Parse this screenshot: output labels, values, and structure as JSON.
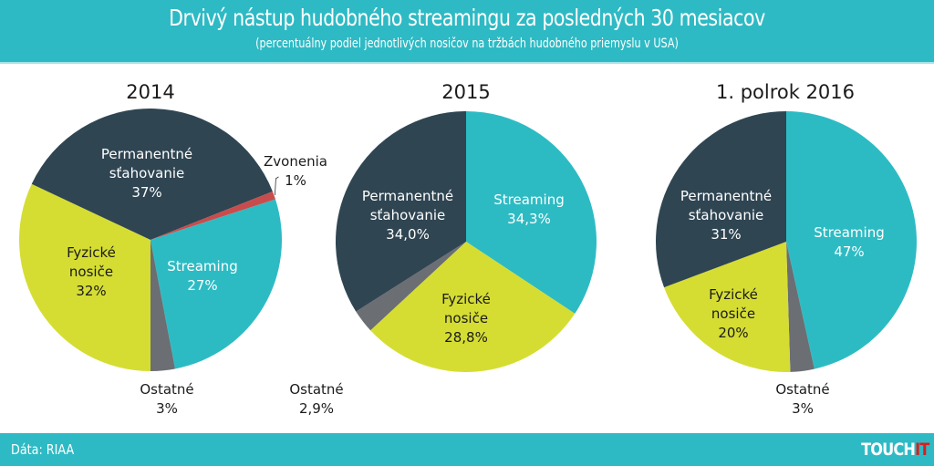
{
  "header": {
    "title": "Drvivý nástup hudobného streamingu za posledných 30 mesiacov",
    "subtitle": "(percentuálny podiel jednotlivých nosičov na tržbách hudobného priemyslu v USA)"
  },
  "footer": {
    "source": "Dáta: RIAA",
    "logo_main": "TOUCH",
    "logo_accent": "IT"
  },
  "colors": {
    "header": "#2ebac4",
    "streaming": "#2dbbc3",
    "permanentne": "#2f4552",
    "fyzicke": "#d5dd33",
    "ostatne": "#6b6e72",
    "zvonenia": "#c94c4c",
    "logo_accent": "#d91e1e"
  },
  "chart_data": [
    {
      "type": "pie",
      "title": "2014",
      "slices": [
        {
          "key": "streaming",
          "label_lines": [
            "Streaming",
            "27%"
          ],
          "value": 27
        },
        {
          "key": "ostatne",
          "label_lines": [
            "Ostatné",
            "3%"
          ],
          "value": 3
        },
        {
          "key": "fyzicke",
          "label_lines": [
            "Fyzické",
            "nosiče",
            "32%"
          ],
          "value": 32
        },
        {
          "key": "permanentne",
          "label_lines": [
            "Permanentné",
            "sťahovanie",
            "37%"
          ],
          "value": 37
        },
        {
          "key": "zvonenia",
          "label_lines": [
            "Zvonenia",
            "1%"
          ],
          "value": 1
        }
      ]
    },
    {
      "type": "pie",
      "title": "2015",
      "slices": [
        {
          "key": "streaming",
          "label_lines": [
            "Streaming",
            "34,3%"
          ],
          "value": 34.3
        },
        {
          "key": "fyzicke",
          "label_lines": [
            "Fyzické",
            "nosiče",
            "28,8%"
          ],
          "value": 28.8
        },
        {
          "key": "ostatne",
          "label_lines": [
            "Ostatné",
            "2,9%"
          ],
          "value": 2.9
        },
        {
          "key": "permanentne",
          "label_lines": [
            "Permanentné",
            "sťahovanie",
            "34,0%"
          ],
          "value": 34.0
        }
      ]
    },
    {
      "type": "pie",
      "title": "1. polrok 2016",
      "slices": [
        {
          "key": "streaming",
          "label_lines": [
            "Streaming",
            "47%"
          ],
          "value": 47
        },
        {
          "key": "ostatne",
          "label_lines": [
            "Ostatné",
            "3%"
          ],
          "value": 3
        },
        {
          "key": "fyzicke",
          "label_lines": [
            "Fyzické",
            "nosiče",
            "20%"
          ],
          "value": 20
        },
        {
          "key": "permanentne",
          "label_lines": [
            "Permanentné",
            "sťahovanie",
            "31%"
          ],
          "value": 31
        }
      ]
    }
  ]
}
